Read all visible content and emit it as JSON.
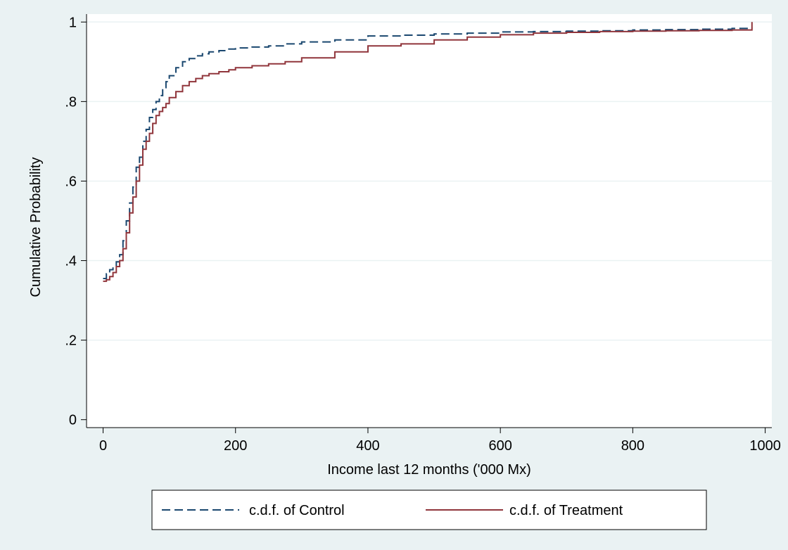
{
  "chart_data": {
    "type": "line",
    "title": "",
    "xlabel": "Income last 12 months ('000 Mx)",
    "ylabel": "Cumulative Probability",
    "xlim": [
      -25,
      1010
    ],
    "ylim": [
      -0.02,
      1.02
    ],
    "x_ticks": [
      0,
      200,
      400,
      600,
      800,
      1000
    ],
    "x_tick_labels": [
      "0",
      "200",
      "400",
      "600",
      "800",
      "1000"
    ],
    "y_ticks": [
      0,
      0.2,
      0.4,
      0.6,
      0.8,
      1
    ],
    "y_tick_labels": [
      "0",
      ".2",
      ".4",
      ".6",
      ".8",
      "1"
    ],
    "grid": "horizontal",
    "legend_position": "bottom",
    "series": [
      {
        "name": "c.d.f. of  Control",
        "color": "#1a476f",
        "style": "dashed",
        "x": [
          0,
          5,
          10,
          15,
          20,
          25,
          30,
          35,
          40,
          45,
          50,
          55,
          60,
          65,
          70,
          75,
          80,
          85,
          90,
          95,
          100,
          110,
          120,
          130,
          140,
          150,
          160,
          175,
          190,
          200,
          225,
          250,
          275,
          300,
          350,
          400,
          450,
          500,
          550,
          600,
          650,
          700,
          750,
          800,
          850,
          900,
          950,
          980
        ],
        "y": [
          0.355,
          0.367,
          0.377,
          0.387,
          0.397,
          0.415,
          0.45,
          0.5,
          0.545,
          0.585,
          0.635,
          0.66,
          0.7,
          0.73,
          0.76,
          0.78,
          0.8,
          0.815,
          0.835,
          0.85,
          0.865,
          0.885,
          0.9,
          0.908,
          0.915,
          0.92,
          0.925,
          0.928,
          0.932,
          0.935,
          0.937,
          0.94,
          0.945,
          0.95,
          0.955,
          0.965,
          0.967,
          0.97,
          0.972,
          0.975,
          0.976,
          0.977,
          0.978,
          0.98,
          0.981,
          0.982,
          0.984,
          0.985
        ]
      },
      {
        "name": "c.d.f. of  Treatment",
        "color": "#90353b",
        "style": "solid",
        "x": [
          0,
          5,
          10,
          15,
          20,
          25,
          30,
          35,
          40,
          45,
          50,
          55,
          60,
          65,
          70,
          75,
          80,
          85,
          90,
          95,
          100,
          110,
          120,
          130,
          140,
          150,
          160,
          175,
          190,
          200,
          225,
          250,
          275,
          300,
          350,
          400,
          450,
          500,
          550,
          600,
          650,
          700,
          750,
          800,
          850,
          900,
          950,
          980,
          980
        ],
        "y": [
          0.348,
          0.352,
          0.36,
          0.37,
          0.385,
          0.4,
          0.43,
          0.47,
          0.52,
          0.56,
          0.6,
          0.64,
          0.68,
          0.7,
          0.72,
          0.745,
          0.765,
          0.775,
          0.785,
          0.795,
          0.81,
          0.825,
          0.84,
          0.85,
          0.858,
          0.865,
          0.87,
          0.875,
          0.88,
          0.885,
          0.89,
          0.895,
          0.9,
          0.91,
          0.925,
          0.94,
          0.945,
          0.955,
          0.962,
          0.968,
          0.972,
          0.974,
          0.976,
          0.977,
          0.978,
          0.979,
          0.98,
          0.98,
          1.0
        ]
      }
    ]
  }
}
